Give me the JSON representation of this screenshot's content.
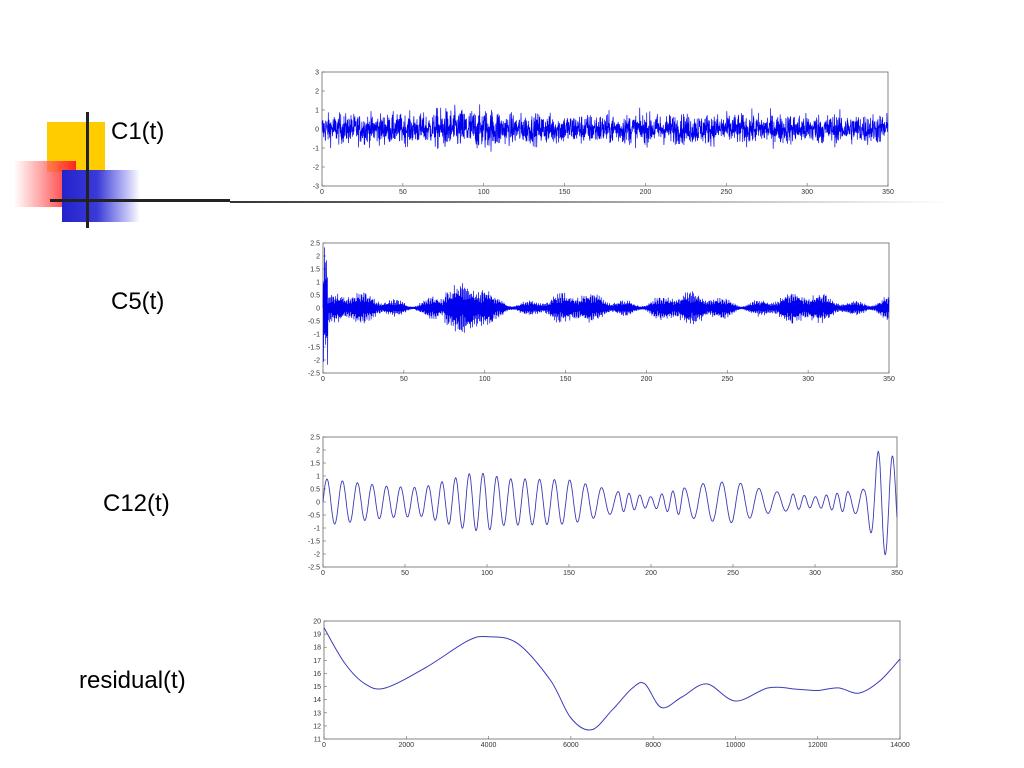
{
  "slide": {
    "labels": [
      "C1(t)",
      "C5(t)",
      "C12(t)",
      "residual(t)"
    ]
  },
  "colors": {
    "signal": "#0000ee",
    "line": "#3b3bb8",
    "deco_yellow": "#ffcc00",
    "deco_red": "#ff2222",
    "deco_blue": "#2323cc"
  },
  "chart_data": [
    {
      "type": "line",
      "name": "C1(t)",
      "xlim": [
        0,
        350
      ],
      "ylim": [
        -3,
        3
      ],
      "xticks": [
        0,
        50,
        100,
        150,
        200,
        250,
        300,
        350
      ],
      "yticks": [
        -3,
        -2,
        -1,
        0,
        1,
        2,
        3
      ],
      "xticklabels": [
        "0",
        "50",
        "100",
        "150",
        "200",
        "250",
        "300",
        "350"
      ],
      "yticklabels": [
        "-3",
        "-2",
        "-1",
        "0",
        "1",
        "2",
        "3"
      ],
      "approx_amplitude": 1.2,
      "peak_abs": 2.6
    },
    {
      "type": "line",
      "name": "C5(t)",
      "xlim": [
        0,
        350
      ],
      "ylim": [
        -2.5,
        2.5
      ],
      "xticks": [
        0,
        50,
        100,
        150,
        200,
        250,
        300,
        350
      ],
      "yticks": [
        -2.5,
        -2,
        -1.5,
        -1,
        -0.5,
        0,
        0.5,
        1,
        1.5,
        2,
        2.5
      ],
      "xticklabels": [
        "0",
        "50",
        "100",
        "150",
        "200",
        "250",
        "300",
        "350"
      ],
      "yticklabels": [
        "-2.5",
        "-2",
        "-1.5",
        "-1",
        "-0.5",
        "0",
        "0.5",
        "1",
        "1.5",
        "2",
        "2.5"
      ],
      "approx_amplitude": 0.6,
      "peak_abs": 2.4
    },
    {
      "type": "line",
      "name": "C12(t)",
      "xlim": [
        0,
        350
      ],
      "ylim": [
        -2.5,
        2.5
      ],
      "xticks": [
        0,
        50,
        100,
        150,
        200,
        250,
        300,
        350
      ],
      "yticks": [
        -2.5,
        -2,
        -1.5,
        -1,
        -0.5,
        0,
        0.5,
        1,
        1.5,
        2,
        2.5
      ],
      "xticklabels": [
        "0",
        "50",
        "100",
        "150",
        "200",
        "250",
        "300",
        "350"
      ],
      "yticklabels": [
        "-2.5",
        "-2",
        "-1.5",
        "-1",
        "-0.5",
        "0",
        "0.5",
        "1",
        "1.5",
        "2",
        "2.5"
      ],
      "envelope": {
        "x": [
          0,
          40,
          60,
          90,
          100,
          110,
          150,
          180,
          200,
          230,
          250,
          270,
          300,
          330,
          340,
          350
        ],
        "y": [
          0.9,
          0.6,
          0.55,
          1.1,
          1.1,
          0.9,
          0.85,
          0.4,
          0.2,
          0.7,
          0.8,
          0.45,
          0.2,
          0.5,
          2.2,
          1.6
        ]
      }
    },
    {
      "type": "line",
      "name": "residual(t)",
      "xlim": [
        0,
        14000
      ],
      "ylim": [
        11,
        20
      ],
      "xticks": [
        0,
        2000,
        4000,
        6000,
        8000,
        10000,
        12000,
        14000
      ],
      "yticks": [
        11,
        12,
        13,
        14,
        15,
        16,
        17,
        18,
        19,
        20
      ],
      "xticklabels": [
        "0",
        "2000",
        "4000",
        "6000",
        "8000",
        "10000",
        "12000",
        "14000"
      ],
      "yticklabels": [
        "11",
        "12",
        "13",
        "14",
        "15",
        "16",
        "17",
        "18",
        "19",
        "20"
      ],
      "x": [
        0,
        500,
        1000,
        1500,
        2500,
        3500,
        4000,
        4700,
        5500,
        6000,
        6500,
        7000,
        7500,
        7800,
        8200,
        8700,
        9300,
        10000,
        10800,
        11500,
        12000,
        12500,
        13000,
        13500,
        14000
      ],
      "y": [
        19.5,
        16.8,
        15.2,
        14.9,
        16.5,
        18.5,
        18.8,
        18.3,
        15.5,
        12.6,
        11.7,
        13.2,
        14.9,
        15.2,
        13.4,
        14.2,
        15.2,
        13.9,
        14.9,
        14.8,
        14.7,
        14.9,
        14.5,
        15.4,
        17.1
      ]
    }
  ]
}
